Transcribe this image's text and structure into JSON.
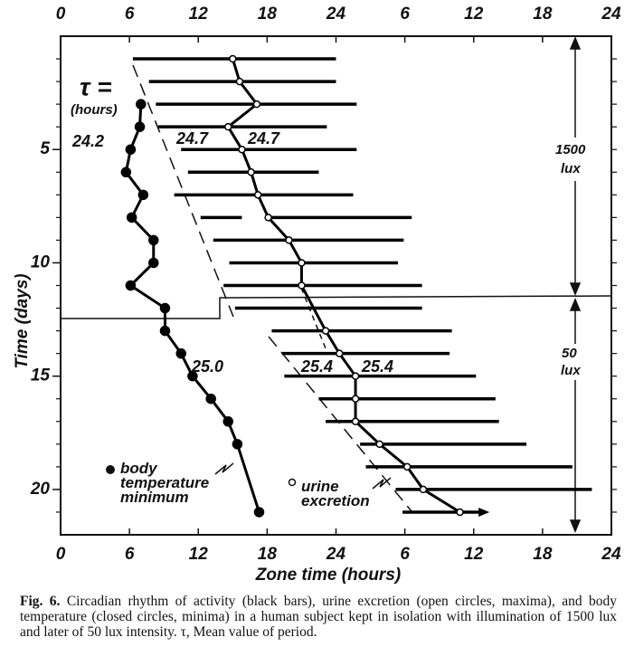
{
  "chart_data": {
    "type": "actogram",
    "x_label": "Zone time (hours)",
    "y_label": "Time (days)",
    "xlim": [
      0,
      48
    ],
    "ylim": [
      0,
      22
    ],
    "xticks": [
      0,
      6,
      12,
      18,
      24,
      {
        "value": 30,
        "label": "6"
      },
      {
        "value": 36,
        "label": "12"
      },
      {
        "value": 42,
        "label": "18"
      },
      {
        "value": 48,
        "label": "24"
      }
    ],
    "yticks": [
      5,
      10,
      15,
      20
    ],
    "yminorticks": [
      1,
      2,
      3,
      4,
      5,
      6,
      7,
      8,
      9,
      10,
      11,
      12,
      13,
      14,
      15,
      16,
      17,
      18,
      19,
      20,
      21
    ],
    "series": [
      {
        "kind": "bars",
        "color": "#000000",
        "days": [
          1,
          2,
          3,
          4,
          5,
          6,
          7,
          8,
          8,
          9,
          10,
          11,
          12,
          13,
          14,
          15,
          16,
          17,
          18,
          19,
          20,
          21
        ],
        "start": [
          6.3,
          7.7,
          8.3,
          8.5,
          10.5,
          11.1,
          9.9,
          12.2,
          18.4,
          13.3,
          14.7,
          14.2,
          15.2,
          18.4,
          19.3,
          19.5,
          22.5,
          23.1,
          26.1,
          26.6,
          29.2,
          29.8
        ],
        "end": [
          24.0,
          24.0,
          25.8,
          23.2,
          25.8,
          22.5,
          25.5,
          15.8,
          30.6,
          29.9,
          29.4,
          31.5,
          31.5,
          34.1,
          33.9,
          36.2,
          37.9,
          38.2,
          40.6,
          44.6,
          46.3,
          36.9
        ]
      },
      {
        "kind": "filled",
        "name": "body temperature minimum",
        "color": "#000000",
        "days": [
          3,
          4,
          5,
          6,
          7,
          8,
          9,
          10,
          11,
          12,
          13,
          14,
          15,
          16,
          17,
          18,
          21
        ],
        "hours": [
          7.0,
          6.9,
          6.1,
          5.7,
          7.2,
          6.2,
          8.1,
          8.1,
          6.1,
          9.1,
          9.1,
          10.5,
          11.5,
          13.1,
          14.6,
          15.4,
          17.3
        ]
      },
      {
        "kind": "open",
        "name": "urine excretion",
        "color": "#000000",
        "days": [
          1,
          2,
          3,
          4,
          5,
          6,
          7,
          8,
          9,
          10,
          11,
          13,
          14,
          15,
          16,
          17,
          18,
          19,
          20,
          21
        ],
        "hours": [
          15.0,
          15.6,
          17.1,
          14.6,
          15.8,
          16.6,
          17.2,
          18.1,
          19.9,
          21.0,
          21.0,
          23.1,
          24.3,
          25.7,
          25.7,
          25.7,
          27.8,
          30.2,
          31.6,
          34.8
        ]
      }
    ],
    "annotations": [
      "τ =",
      "(hours)",
      "24.2",
      "24.7",
      "24.7",
      "25.0",
      "25.4",
      "25.4",
      "1500",
      "lux",
      "50",
      "lux"
    ],
    "caption": {
      "label": "Fig. 6.",
      "text": "Circadian rhythm of activity (black bars), urine excretion (open circles, maxima), and body temperature (closed circles, minima) in a human subject kept in isolation with illumination of 1500 lux and later of 50 lux intensity. τ, Mean value of period."
    }
  }
}
